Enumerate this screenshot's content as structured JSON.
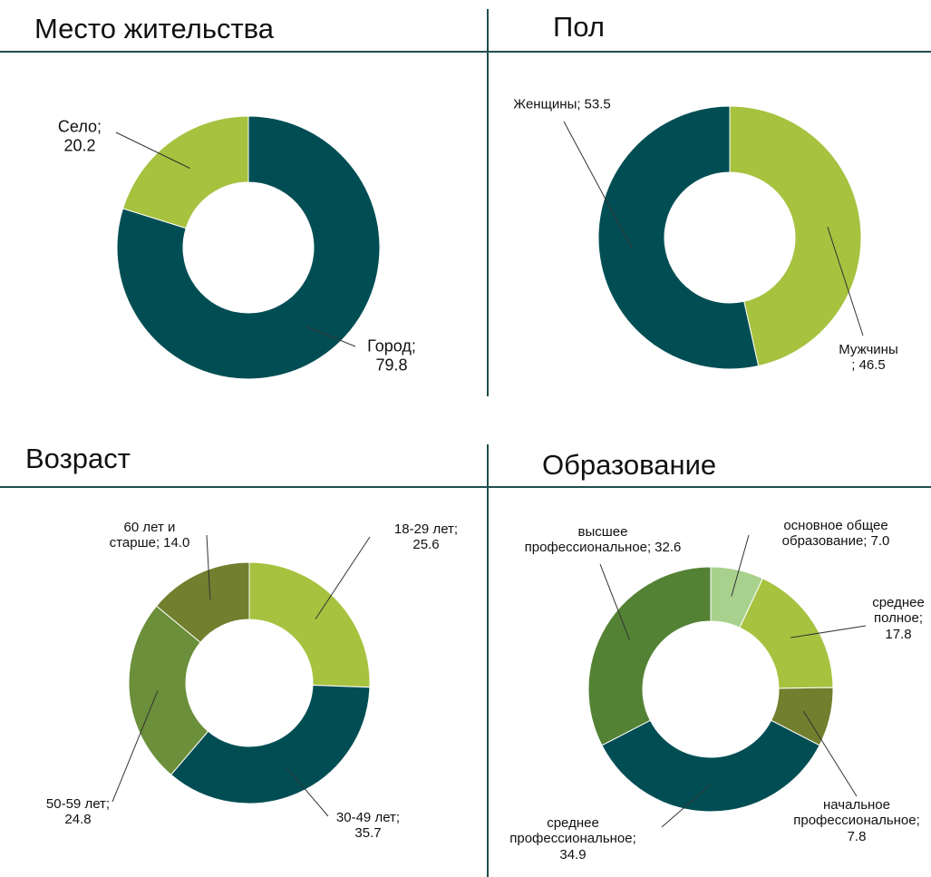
{
  "chart_data": [
    {
      "type": "donut",
      "title": "Место жительства",
      "categories": [
        "Город;",
        "Село;"
      ],
      "values": [
        79.8,
        20.2
      ],
      "colors": [
        "#004e54",
        "#a6c23f"
      ]
    },
    {
      "type": "donut",
      "title": "Пол",
      "categories": [
        "Мужчины",
        "Женщины;"
      ],
      "values": [
        46.5,
        53.5
      ],
      "value_labels": [
        "; 46.5",
        "53.5"
      ],
      "colors": [
        "#a6c23f",
        "#004e54"
      ]
    },
    {
      "type": "donut",
      "title": "Возраст",
      "categories": [
        "18-29 лет;",
        "30-49 лет;",
        "50-59 лет;",
        "60 лет и\nстарше;"
      ],
      "values": [
        25.6,
        35.7,
        24.8,
        14
      ],
      "value_labels": [
        "25.6",
        "35.7",
        "24.8",
        "14.0"
      ],
      "colors": [
        "#a6c23f",
        "#004e54",
        "#6b8f3a",
        "#717f2e"
      ]
    },
    {
      "type": "donut",
      "title": "Образование",
      "categories": [
        "основное общее\nобразование;",
        "среднее\nполное;",
        "начальное\nпрофессиональное;",
        "среднее\nпрофессиональное;",
        "высшее\nпрофессиональное;"
      ],
      "values": [
        7,
        17.8,
        7.8,
        34.9,
        32.6
      ],
      "value_labels": [
        "7.0",
        "17.8",
        "7.8",
        "34.9",
        "32.6"
      ],
      "colors": [
        "#a9d18e",
        "#a6c23f",
        "#717f2e",
        "#004e54",
        "#548235"
      ]
    }
  ]
}
